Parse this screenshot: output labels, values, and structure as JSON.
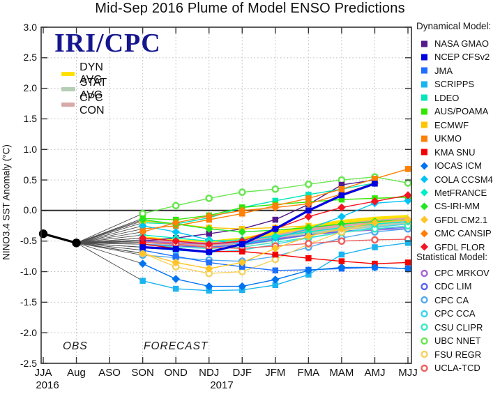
{
  "title": "Mid-Sep 2016 Plume of Model ENSO Predictions",
  "branding": "IRI/CPC",
  "annotations": {
    "obs": "OBS",
    "forecast": "FORECAST"
  },
  "axes": {
    "y_label": "NINO3.4 SST Anomaly (°C)",
    "y_ticks": [
      "3.0",
      "2.5",
      "2.0",
      "1.5",
      "1.0",
      "0.5",
      "0.0",
      "-0.5",
      "-1.0",
      "-1.5",
      "-2.0",
      "-2.5"
    ],
    "x_ticks": [
      "JJA",
      "Aug",
      "ASO",
      "SON",
      "OND",
      "NDJ",
      "DJF",
      "JFM",
      "FMA",
      "MAM",
      "AMJ",
      "MJJ"
    ],
    "year_left": "2016",
    "year_right": "2017"
  },
  "legend": {
    "dynamical_title": "Dynamical Model:",
    "statistical_title": "Statistical Model:"
  },
  "colors": {
    "zero_line": "#3f3f3f",
    "grid": "#b9b9b9",
    "frame": "#333333",
    "fan_connector": "#4d4d4d",
    "obs": "#000000",
    "brand_navy": "#15158f"
  },
  "chart_data": {
    "type": "line",
    "title": "Mid-Sep 2016 Plume of Model ENSO Predictions",
    "ylabel": "NINO3.4 SST Anomaly (°C)",
    "ylim": [
      -2.5,
      3.0
    ],
    "y_tick_step": 0.5,
    "grid": "dotted",
    "legend_position": "right",
    "x_categories": [
      "JJA",
      "Aug",
      "ASO",
      "SON",
      "OND",
      "NDJ",
      "DJF",
      "JFM",
      "FMA",
      "MAM",
      "AMJ",
      "MJJ"
    ],
    "observations": {
      "name": "OBS",
      "color": "#000000",
      "x_indices": [
        0,
        1
      ],
      "values": [
        -0.38,
        -0.53
      ]
    },
    "forecast_x_start_index": 3,
    "forecast_x": [
      "SON",
      "OND",
      "NDJ",
      "DJF",
      "JFM",
      "FMA",
      "MAM",
      "AMJ",
      "MJJ"
    ],
    "series": [
      {
        "name": "NASA GMAO",
        "group": "dynamical",
        "marker": "square",
        "color": "#551a8b",
        "values": [
          -0.5,
          -0.45,
          -0.38,
          -0.3,
          -0.15,
          0.1,
          0.42,
          0.5,
          null
        ]
      },
      {
        "name": "NCEP CFSv2",
        "group": "dynamical",
        "marker": "square",
        "color": "#0000e0",
        "line_width": 3.2,
        "values": [
          -0.6,
          -0.63,
          -0.68,
          -0.55,
          -0.3,
          0.0,
          0.25,
          0.44,
          null
        ]
      },
      {
        "name": "JMA",
        "group": "dynamical",
        "marker": "square",
        "color": "#1e6eff",
        "values": [
          -0.65,
          -0.75,
          -0.85,
          -0.92,
          -0.98,
          -0.97,
          -0.95,
          -0.93,
          -0.95
        ]
      },
      {
        "name": "SCRIPPS",
        "group": "dynamical",
        "marker": "square",
        "color": "#1ab4f0",
        "values": [
          -1.15,
          -1.28,
          -1.31,
          -1.3,
          -1.22,
          -1.05,
          -0.72,
          -0.6,
          -0.53
        ]
      },
      {
        "name": "LDEO",
        "group": "dynamical",
        "marker": "square",
        "color": "#00e6b8",
        "values": [
          -0.2,
          -0.22,
          -0.12,
          0.05,
          0.16,
          0.26,
          0.35,
          0.45,
          null
        ]
      },
      {
        "name": "AUS/POAMA",
        "group": "dynamical",
        "marker": "square",
        "color": "#33e600",
        "values": [
          -0.13,
          -0.15,
          -0.08,
          0.05,
          0.1,
          0.14,
          0.18,
          0.2,
          0.22
        ]
      },
      {
        "name": "ECMWF",
        "group": "dynamical",
        "marker": "square",
        "color": "#ffc400",
        "values": [
          -0.17,
          -0.22,
          -0.28,
          -0.3,
          -0.28,
          -0.25,
          null,
          null,
          null
        ]
      },
      {
        "name": "UKMO",
        "group": "dynamical",
        "marker": "square",
        "color": "#ff7f00",
        "values": [
          -0.3,
          -0.25,
          -0.15,
          -0.05,
          0.08,
          0.2,
          0.35,
          0.52,
          0.68
        ]
      },
      {
        "name": "KMA SNU",
        "group": "dynamical",
        "marker": "square",
        "color": "#f50000",
        "values": [
          -0.55,
          -0.62,
          -0.67,
          -0.67,
          -0.72,
          -0.78,
          -0.83,
          -0.87,
          -0.85
        ]
      },
      {
        "name": "IOCAS ICM",
        "group": "dynamical",
        "marker": "diamond",
        "color": "#0073f0",
        "values": [
          -0.87,
          -1.12,
          -1.24,
          -1.24,
          -1.13,
          -0.98,
          -0.93,
          -0.93,
          -0.95
        ]
      },
      {
        "name": "COLA CCSM4",
        "group": "dynamical",
        "marker": "diamond",
        "color": "#00c3f5",
        "values": [
          -0.25,
          -0.35,
          -0.48,
          -0.55,
          -0.45,
          -0.3,
          -0.1,
          0.12,
          0.16
        ]
      },
      {
        "name": "MetFRANCE",
        "group": "dynamical",
        "marker": "diamond",
        "color": "#00ecc8",
        "values": [
          -0.4,
          -0.45,
          -0.5,
          -0.48,
          -0.42,
          -0.35,
          -0.28,
          -0.22,
          -0.18
        ]
      },
      {
        "name": "CS-IRI-MM",
        "group": "dynamical",
        "marker": "diamond",
        "color": "#21e621",
        "values": [
          -0.15,
          -0.22,
          -0.3,
          -0.35,
          -0.32,
          -0.28,
          -0.22,
          -0.18,
          -0.15
        ]
      },
      {
        "name": "GFDL CM2.1",
        "group": "dynamical",
        "marker": "diamond",
        "color": "#ffc428",
        "values": [
          -0.7,
          -0.85,
          -0.95,
          -0.85,
          -0.62,
          -0.42,
          -0.3,
          -0.2,
          -0.15
        ]
      },
      {
        "name": "CMC CANSIP",
        "group": "dynamical",
        "marker": "diamond",
        "color": "#ff7f0a",
        "values": [
          -0.35,
          -0.2,
          -0.09,
          0.0,
          0.05,
          0.11,
          0.27,
          0.45,
          null
        ]
      },
      {
        "name": "GFDL FLOR",
        "group": "dynamical",
        "marker": "diamond",
        "color": "#f51423",
        "values": [
          -0.45,
          -0.5,
          -0.55,
          -0.5,
          -0.3,
          -0.1,
          0.05,
          0.15,
          0.25
        ]
      },
      {
        "name": "CPC MRKOV",
        "group": "statistical",
        "marker": "circle-open",
        "color": "#a564d2",
        "values": [
          -0.5,
          -0.53,
          -0.55,
          -0.52,
          -0.46,
          -0.4,
          -0.35,
          -0.32,
          -0.3
        ]
      },
      {
        "name": "CDC LIM",
        "group": "statistical",
        "marker": "circle-open",
        "color": "#5a64f0",
        "values": [
          -0.55,
          -0.58,
          -0.6,
          -0.56,
          -0.48,
          -0.4,
          -0.34,
          -0.3,
          -0.28
        ]
      },
      {
        "name": "CPC CA",
        "group": "statistical",
        "marker": "circle-open",
        "color": "#55aaf0",
        "values": [
          -0.73,
          -0.77,
          -0.81,
          -0.83,
          -0.75,
          -0.6,
          -0.45,
          -0.35,
          -0.3
        ]
      },
      {
        "name": "CPC CCA",
        "group": "statistical",
        "marker": "circle-open",
        "color": "#3cd2f0",
        "values": [
          -0.6,
          -0.65,
          -0.68,
          -0.65,
          -0.55,
          -0.45,
          -0.36,
          -0.28,
          -0.22
        ]
      },
      {
        "name": "CSU CLIPR",
        "group": "statistical",
        "marker": "circle-open",
        "color": "#3ce6c3",
        "values": [
          -0.55,
          -0.6,
          -0.62,
          -0.6,
          -0.52,
          -0.44,
          -0.36,
          -0.3,
          -0.25
        ]
      },
      {
        "name": "UBC NNET",
        "group": "statistical",
        "marker": "circle-open",
        "color": "#69e650",
        "values": [
          -0.05,
          0.08,
          0.2,
          0.3,
          0.35,
          0.43,
          0.5,
          0.55,
          0.45
        ]
      },
      {
        "name": "FSU REGR",
        "group": "statistical",
        "marker": "circle-open",
        "color": "#f5d25f",
        "values": [
          -0.7,
          -0.92,
          -1.03,
          -1.0,
          -0.8,
          -0.55,
          -0.35,
          -0.2,
          -0.18
        ]
      },
      {
        "name": "UCLA-TCD",
        "group": "statistical",
        "marker": "circle-open",
        "color": "#f05f5f",
        "values": [
          -0.52,
          -0.55,
          -0.6,
          -0.62,
          -0.58,
          -0.54,
          -0.5,
          -0.48,
          -0.47
        ]
      },
      {
        "name": "DYN AVG",
        "group": "average",
        "marker": "none",
        "color": "#ffe100",
        "line_width": 5,
        "values": [
          -0.45,
          -0.5,
          -0.52,
          -0.47,
          -0.37,
          -0.27,
          -0.18,
          -0.13,
          -0.1
        ]
      },
      {
        "name": "STAT AVG",
        "group": "average",
        "marker": "none",
        "color": "#b5cdb5",
        "line_width": 5,
        "values": [
          -0.5,
          -0.55,
          -0.58,
          -0.55,
          -0.47,
          -0.38,
          -0.3,
          -0.25,
          -0.2
        ]
      },
      {
        "name": "CPC CON",
        "group": "average",
        "marker": "none",
        "color": "#d7a9a9",
        "line_width": 5,
        "values": [
          -0.48,
          -0.52,
          -0.55,
          -0.52,
          -0.42,
          -0.32,
          -0.24,
          -0.18,
          -0.14
        ]
      }
    ]
  }
}
